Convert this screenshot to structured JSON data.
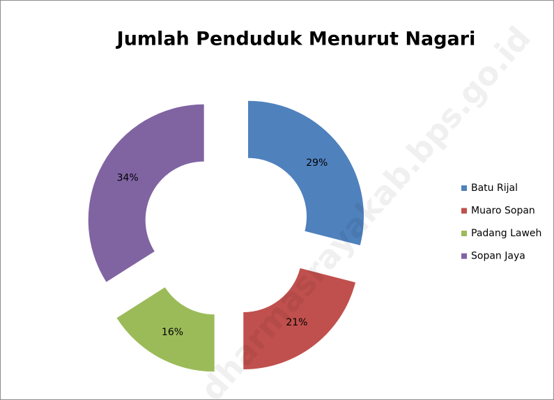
{
  "chart_data": {
    "type": "doughnut",
    "title": "Jumlah Penduduk Menurut Nagari",
    "categories": [
      "Batu Rijal",
      "Muaro Sopan",
      "Padang Laweh",
      "Sopan Jaya"
    ],
    "values": [
      29,
      21,
      16,
      34
    ],
    "value_labels": [
      "29%",
      "21%",
      "16%",
      "34%"
    ],
    "colors": [
      "#4f81bd",
      "#c0504d",
      "#9bbb59",
      "#8064a2"
    ],
    "legend": "right",
    "watermark": "dharmasrayakab.bps.go.id"
  }
}
